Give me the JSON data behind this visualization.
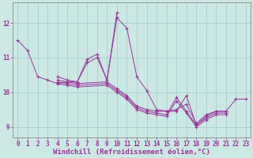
{
  "bg_color": "#cce8e4",
  "line_color": "#993399",
  "grid_color": "#99cccc",
  "xlabel": "Windchill (Refroidissement éolien,°C)",
  "xlabel_fontsize": 6.5,
  "tick_fontsize": 5.5,
  "ylim": [
    8.7,
    12.6
  ],
  "xlim": [
    -0.5,
    23.5
  ],
  "yticks": [
    9,
    10,
    11,
    12
  ],
  "xticks": [
    0,
    1,
    2,
    3,
    4,
    5,
    6,
    7,
    8,
    9,
    10,
    11,
    12,
    13,
    14,
    15,
    16,
    17,
    18,
    19,
    20,
    21,
    22,
    23
  ],
  "series": [
    [
      0,
      11.5,
      1,
      11.2,
      2,
      10.45,
      3,
      10.35,
      4,
      10.25,
      5,
      10.3,
      6,
      10.3,
      7,
      10.85,
      8,
      11.0,
      9,
      10.35,
      10,
      12.15,
      11,
      11.85,
      12,
      10.45,
      13,
      10.05,
      14,
      9.5,
      15,
      9.45,
      16,
      9.45,
      17,
      9.9,
      18,
      9.05,
      19,
      9.3,
      20,
      9.45,
      21,
      9.45,
      22,
      9.8,
      23,
      9.8
    ],
    [
      4,
      10.45,
      5,
      10.35,
      6,
      10.3,
      7,
      10.95,
      8,
      11.1,
      9,
      10.35,
      10,
      12.3
    ],
    [
      4,
      10.35,
      5,
      10.3,
      6,
      10.25,
      9,
      10.3,
      10,
      10.1,
      11,
      9.9,
      12,
      9.6,
      13,
      9.5,
      14,
      9.45,
      15,
      9.45,
      16,
      9.5,
      17,
      9.65,
      18,
      9.1,
      19,
      9.35,
      20,
      9.45,
      21,
      9.45
    ],
    [
      4,
      10.3,
      5,
      10.25,
      6,
      10.2,
      9,
      10.25,
      10,
      10.05,
      11,
      9.85,
      12,
      9.55,
      13,
      9.45,
      14,
      9.4,
      15,
      9.35,
      16,
      9.85,
      17,
      9.45,
      18,
      9.05,
      19,
      9.25,
      20,
      9.4,
      21,
      9.4
    ],
    [
      4,
      10.25,
      5,
      10.2,
      6,
      10.15,
      9,
      10.2,
      10,
      10.0,
      11,
      9.8,
      12,
      9.5,
      13,
      9.4,
      14,
      9.35,
      15,
      9.3,
      16,
      9.75,
      17,
      9.4,
      18,
      9.0,
      19,
      9.2,
      20,
      9.35,
      21,
      9.35
    ]
  ],
  "spines_color": "#777777",
  "linewidth": 0.7,
  "markersize": 3.0
}
